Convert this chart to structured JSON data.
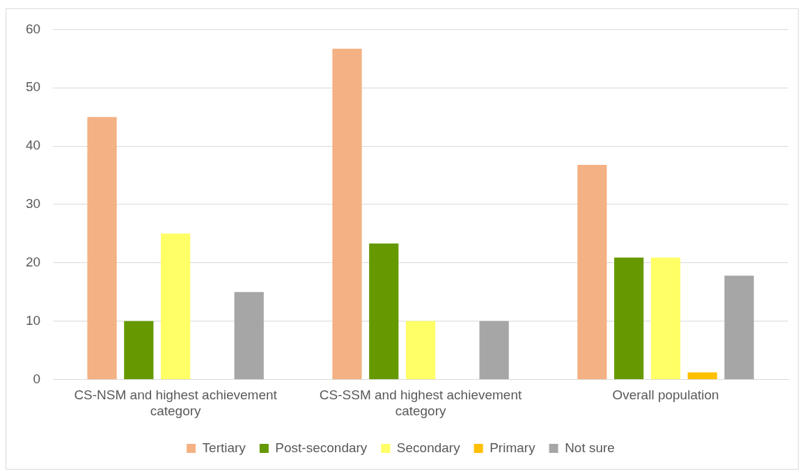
{
  "chart_data": {
    "type": "bar",
    "categories": [
      "CS-NSM and highest achievement category",
      "CS-SSM and highest achievement category",
      "Overall population"
    ],
    "series": [
      {
        "name": "Tertiary",
        "color": "#f4b183",
        "values": [
          45,
          56.7,
          36.8
        ]
      },
      {
        "name": "Post-secondary",
        "color": "#669900",
        "values": [
          10,
          23.3,
          20.9
        ]
      },
      {
        "name": "Secondary",
        "color": "#ffff66",
        "values": [
          25,
          10,
          20.9
        ]
      },
      {
        "name": "Primary",
        "color": "#ffc000",
        "values": [
          0,
          0,
          1.2
        ]
      },
      {
        "name": "Not sure",
        "color": "#a6a6a6",
        "values": [
          15,
          10,
          17.8
        ]
      }
    ],
    "ylim": [
      0,
      60
    ],
    "yticks": [
      0,
      10,
      20,
      30,
      40,
      50,
      60
    ],
    "grid": "y",
    "legend": "bottom"
  }
}
